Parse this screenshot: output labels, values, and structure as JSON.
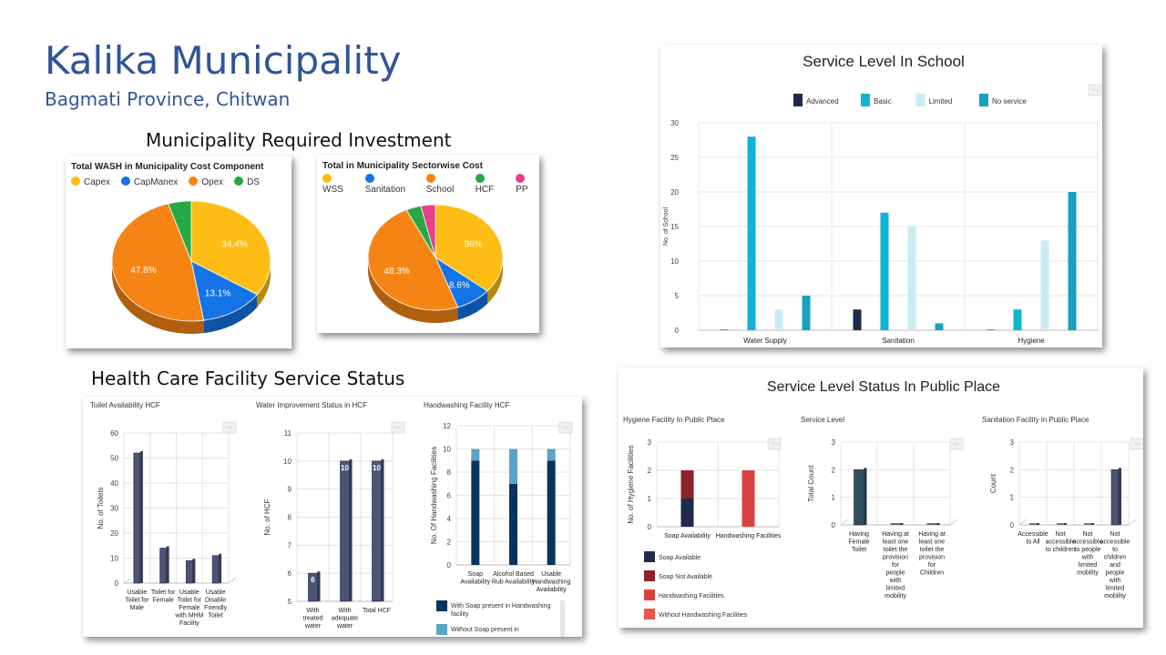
{
  "header": {
    "title": "Kalika Municipality",
    "subtitle": "Bagmati Province, Chitwan"
  },
  "sections": {
    "investment": "Municipality Required Investment",
    "hcf": "Health Care Facility Service Status",
    "school": "Service Level In School",
    "public": "Service Level Status In Public Place"
  },
  "chart_data": [
    {
      "id": "cost_component",
      "type": "pie",
      "title": "Total WASH in Municipality Cost Component",
      "labels": [
        "Capex",
        "CapManex",
        "Opex",
        "DS"
      ],
      "values": [
        34.4,
        13.1,
        47.8,
        4.7
      ],
      "value_labels": [
        "34.4%",
        "13.1%",
        "47.8%",
        ""
      ],
      "colors": [
        "#fdbd14",
        "#1473e6",
        "#f68414",
        "#27a844"
      ],
      "legend": "top"
    },
    {
      "id": "sectorwise",
      "type": "pie",
      "title": "Total in Municipality Sectorwise Cost",
      "labels": [
        "WSS",
        "Sanitation",
        "School",
        "HCF",
        "PP"
      ],
      "values": [
        36,
        8.6,
        48.3,
        3.6,
        3.5
      ],
      "value_labels": [
        "36%",
        "8.6%",
        "48.3%",
        "",
        ""
      ],
      "colors": [
        "#fdbd14",
        "#1473e6",
        "#f68414",
        "#27a844",
        "#e83e8c"
      ],
      "legend": "top"
    },
    {
      "id": "school",
      "type": "bar",
      "title": "Service Level In School",
      "ylabel": "No. of School",
      "categories": [
        "Water Supply",
        "Sanitation",
        "Hygiene"
      ],
      "series": [
        {
          "name": "Advanced",
          "values": [
            0,
            3,
            0
          ],
          "color": "#1f2b4d"
        },
        {
          "name": "Basic",
          "values": [
            28,
            17,
            3
          ],
          "color": "#0fb4d3"
        },
        {
          "name": "Limited",
          "values": [
            3,
            15,
            13
          ],
          "color": "#c9ecf4"
        },
        {
          "name": "No service",
          "values": [
            5,
            1,
            20
          ],
          "color": "#1aa0bf"
        }
      ],
      "ylim": [
        0,
        30
      ],
      "yticks": [
        "0",
        "5",
        "10",
        "15",
        "20",
        "25",
        "30"
      ],
      "legend": "top"
    },
    {
      "id": "toilet_hcf",
      "type": "bar",
      "title": "Toilet Availability HCF",
      "ylabel": "No. of Toilets",
      "categories": [
        "Usable Toilet for Male",
        "Toilet for Female",
        "Usable Toilet for Female with MHM Facility",
        "Usable Disable Friendly Toilet"
      ],
      "category_lines": [
        [
          "Usable",
          "Toilet for",
          "Male"
        ],
        [
          "Toilet for",
          "Female"
        ],
        [
          "Usable",
          "Toilet for",
          "Female",
          "with MHM",
          "Facility"
        ],
        [
          "Usable",
          "Disable",
          "Friendly",
          "Toilet"
        ]
      ],
      "values": [
        52,
        14,
        9,
        11
      ],
      "ylim": [
        0,
        60
      ],
      "yticks": [
        "0",
        "10",
        "20",
        "30",
        "40",
        "50",
        "60"
      ],
      "color": "#4d5576"
    },
    {
      "id": "water_hcf",
      "type": "bar",
      "title": "Water Improvement Status in HCF",
      "ylabel": "No. of HCF",
      "categories": [
        "With treated water",
        "With adequate water",
        "Total HCF"
      ],
      "category_lines": [
        [
          "With",
          "treated",
          "water"
        ],
        [
          "With",
          "adequate",
          "water"
        ],
        [
          "Total HCF"
        ]
      ],
      "values": [
        6,
        10,
        10
      ],
      "value_labels": [
        "6",
        "10",
        "10"
      ],
      "ylim": [
        5,
        11
      ],
      "yticks": [
        "5",
        "6",
        "7",
        "8",
        "9",
        "10",
        "11"
      ],
      "color": "#4d5576"
    },
    {
      "id": "handwash_hcf",
      "type": "bar",
      "title": "Handwashing Facility HCF",
      "ylabel": "No. Of Handwashing Facilities",
      "categories": [
        "Soap Availability",
        "Alcohol Based Rub Availability",
        "Usable Handwashing Availability"
      ],
      "category_lines": [
        [
          "Soap",
          "Availability"
        ],
        [
          "Alcohol Based",
          "Rub Availability"
        ],
        [
          "Usable",
          "Handwashing",
          "Availability"
        ]
      ],
      "series": [
        {
          "name": "With Soap present in Handwashing facility",
          "values": [
            9,
            7,
            9
          ],
          "color": "#07355e"
        },
        {
          "name": "Without Soap present in",
          "values": [
            1,
            3,
            1
          ],
          "color": "#5aa3c9"
        }
      ],
      "legend_lines": [
        [
          "With Soap present in Handwashing",
          "facility"
        ],
        [
          "Without Soap present in"
        ]
      ],
      "ylim": [
        0,
        12
      ],
      "yticks": [
        "0",
        "2",
        "4",
        "6",
        "8",
        "10",
        "12"
      ]
    },
    {
      "id": "hygiene_pp",
      "type": "bar",
      "title": "Hygiene Facility In Public Place",
      "ylabel": "No. of Hygiene Facilities",
      "categories": [
        "Soap Availability",
        "Handwashing Facilities"
      ],
      "series": [
        {
          "name": "Soap Available",
          "values": [
            1,
            0
          ],
          "color": "#1f2b4d"
        },
        {
          "name": "Soap Not Available",
          "values": [
            1,
            0
          ],
          "color": "#8e2229"
        },
        {
          "name": "Handwashing Facilities",
          "values": [
            0,
            2
          ],
          "color": "#d9433f"
        },
        {
          "name": "Without Handwashing Facilities",
          "values": [
            0,
            0
          ],
          "color": "#e8564c"
        }
      ],
      "ylim": [
        0,
        3
      ],
      "yticks": [
        "0",
        "1",
        "2",
        "3"
      ]
    },
    {
      "id": "service_pp",
      "type": "bar",
      "title": "Service Level",
      "ylabel": "Total Count",
      "categories": [
        "Having Female Toilet",
        "Having at least one toilet the provision for people with limited mobility",
        "Having at least one toilet the provision for Children"
      ],
      "category_lines": [
        [
          "Having",
          "Female",
          "Toilet"
        ],
        [
          "Having at",
          "least one",
          "toilet the",
          "provision",
          "for",
          "people",
          "with",
          "limited",
          "mobility"
        ],
        [
          "Having at",
          "least one",
          "toilet the",
          "provision",
          "for",
          "Children"
        ]
      ],
      "values": [
        2,
        0,
        0
      ],
      "ylim": [
        0,
        3
      ],
      "yticks": [
        "0",
        "1",
        "2",
        "3"
      ],
      "color": "#2f4f63"
    },
    {
      "id": "sanitation_pp",
      "type": "bar",
      "title": "Sanitation Facility in Public Place",
      "ylabel": "Count",
      "categories": [
        "Accessible to All",
        "Not accessible to children",
        "Not accessible to people with limited mobility",
        "Not accessible to children and people with limited mobility"
      ],
      "category_lines": [
        [
          "Accessible",
          "to All"
        ],
        [
          "Not",
          "accessible",
          "to children"
        ],
        [
          "Not",
          "accessible",
          "to people",
          "with",
          "limited",
          "mobility"
        ],
        [
          "Not",
          "accessible",
          "to",
          "children",
          "and",
          "people",
          "with",
          "limited",
          "mobility"
        ]
      ],
      "values": [
        0,
        0,
        0,
        2
      ],
      "ylim": [
        0,
        3
      ],
      "yticks": [
        "0",
        "1",
        "2",
        "3"
      ],
      "color": "#4d5576"
    }
  ]
}
